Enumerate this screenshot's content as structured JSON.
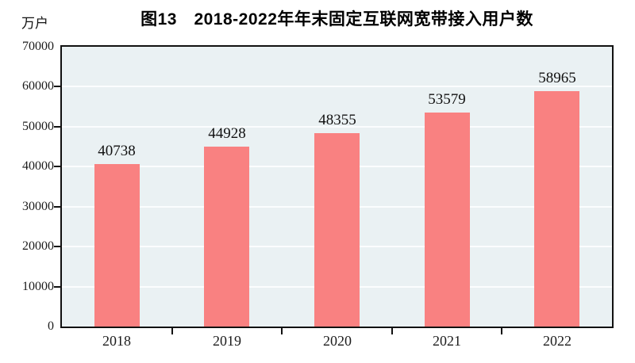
{
  "chart": {
    "title": "图13　2018-2022年年末固定互联网宽带接入用户数",
    "unit_label": "万户"
  },
  "chart_data": {
    "type": "bar",
    "title": "图13　2018-2022年年末固定互联网宽带接入用户数",
    "unit_label": "万户",
    "categories": [
      "2018",
      "2019",
      "2020",
      "2021",
      "2022"
    ],
    "values": [
      40738,
      44928,
      48355,
      53579,
      58965
    ],
    "value_labels": [
      "40738",
      "44928",
      "48355",
      "53579",
      "58965"
    ],
    "xlabel": "",
    "ylabel": "万户",
    "ylim": [
      0,
      70000
    ],
    "ytick_interval": 10000,
    "yticks": [
      0,
      10000,
      20000,
      30000,
      40000,
      50000,
      60000,
      70000
    ],
    "grid": "horizontal",
    "legend": "none",
    "colors": {
      "bar": "#f98181",
      "plot_background": "#eaf1f3",
      "gridline": "#fbfdfe",
      "axis": "#111111",
      "text": "#1a1a1a",
      "page_background": "#ffffff"
    }
  }
}
